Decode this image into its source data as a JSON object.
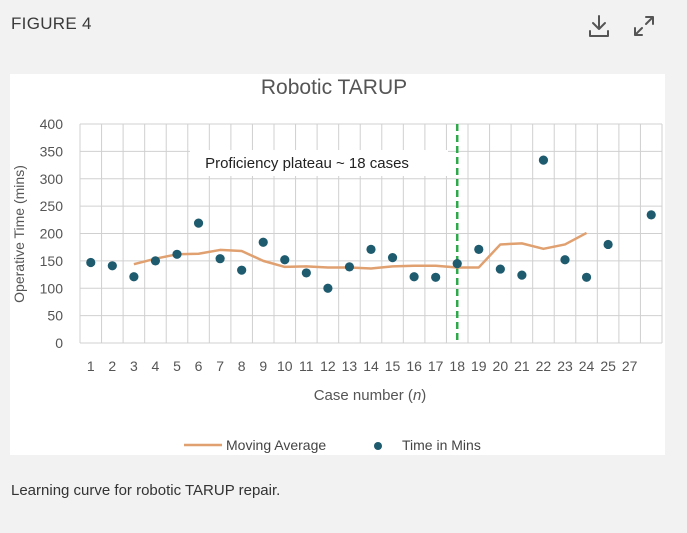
{
  "header": {
    "figure_label": "FIGURE 4",
    "download_icon": "download-icon",
    "expand_icon": "expand-icon"
  },
  "caption": "Learning curve for robotic TARUP repair.",
  "colors": {
    "moving_average": "#e0a070",
    "points": "#1e5b6e",
    "plateau_line": "#2ea84a",
    "grid": "#d0d0d0"
  },
  "chart_data": {
    "type": "scatter",
    "title": "Robotic TARUP",
    "xlabel": "Case number (n)",
    "ylabel": "Operative Time (mins)",
    "ylim": [
      0,
      400
    ],
    "yticks": [
      0,
      50,
      100,
      150,
      200,
      250,
      300,
      350,
      400
    ],
    "xtick_labels": [
      "1",
      "2",
      "3",
      "4",
      "5",
      "6",
      "7",
      "8",
      "9",
      "10",
      "11",
      "12",
      "13",
      "14",
      "15",
      "16",
      "17",
      "18",
      "19",
      "20",
      "21",
      "22",
      "23",
      "24",
      "25",
      "27"
    ],
    "grid": true,
    "legend_position": "bottom",
    "annotation": {
      "text": "Proficiency plateau ~ 18 cases",
      "x": 18
    },
    "series": [
      {
        "name": "Time in Mins",
        "kind": "scatter",
        "x": [
          1,
          2,
          3,
          4,
          5,
          6,
          7,
          8,
          9,
          10,
          11,
          12,
          13,
          14,
          15,
          16,
          17,
          18,
          19,
          20,
          21,
          22,
          23,
          24,
          25,
          27
        ],
        "y": [
          147,
          141,
          121,
          150,
          162,
          219,
          154,
          133,
          184,
          152,
          128,
          100,
          139,
          171,
          156,
          121,
          120,
          145,
          171,
          135,
          124,
          334,
          152,
          120,
          180,
          234
        ]
      },
      {
        "name": "Moving Average",
        "kind": "line",
        "x": [
          3,
          4,
          5,
          6,
          7,
          8,
          9,
          10,
          11,
          12,
          13,
          14,
          15,
          16,
          17,
          18,
          19,
          20,
          21,
          22,
          23,
          24
        ],
        "y": [
          144,
          154,
          162,
          163,
          170,
          168,
          150,
          139,
          140,
          138,
          138,
          136,
          140,
          141,
          141,
          138,
          138,
          180,
          182,
          172,
          180,
          201
        ]
      }
    ]
  }
}
